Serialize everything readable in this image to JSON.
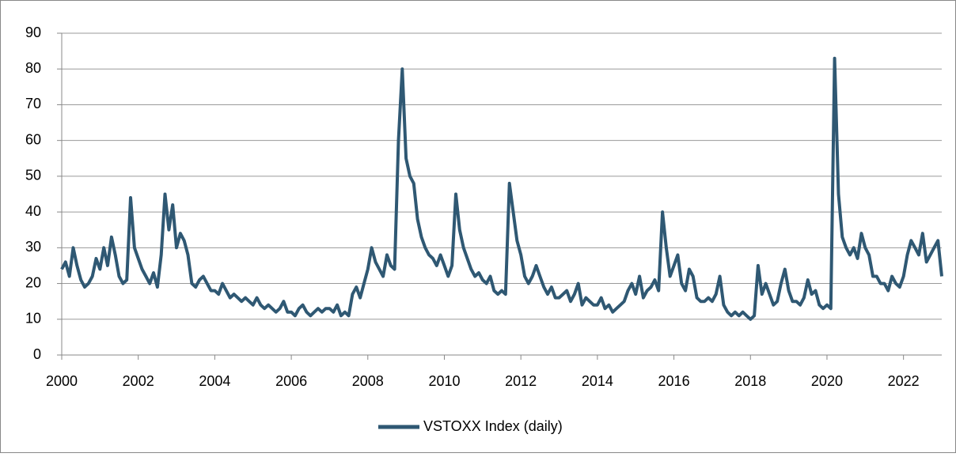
{
  "chart_data": {
    "type": "line",
    "x": [
      2000.0,
      2000.1,
      2000.2,
      2000.3,
      2000.4,
      2000.5,
      2000.6,
      2000.7,
      2000.8,
      2000.9,
      2001.0,
      2001.1,
      2001.2,
      2001.3,
      2001.4,
      2001.5,
      2001.6,
      2001.7,
      2001.8,
      2001.9,
      2002.0,
      2002.1,
      2002.2,
      2002.3,
      2002.4,
      2002.5,
      2002.6,
      2002.7,
      2002.8,
      2002.9,
      2003.0,
      2003.1,
      2003.2,
      2003.3,
      2003.4,
      2003.5,
      2003.6,
      2003.7,
      2003.8,
      2003.9,
      2004.0,
      2004.1,
      2004.2,
      2004.3,
      2004.4,
      2004.5,
      2004.6,
      2004.7,
      2004.8,
      2004.9,
      2005.0,
      2005.1,
      2005.2,
      2005.3,
      2005.4,
      2005.5,
      2005.6,
      2005.7,
      2005.8,
      2005.9,
      2006.0,
      2006.1,
      2006.2,
      2006.3,
      2006.4,
      2006.5,
      2006.6,
      2006.7,
      2006.8,
      2006.9,
      2007.0,
      2007.1,
      2007.2,
      2007.3,
      2007.4,
      2007.5,
      2007.6,
      2007.7,
      2007.8,
      2007.9,
      2008.0,
      2008.1,
      2008.2,
      2008.3,
      2008.4,
      2008.5,
      2008.6,
      2008.7,
      2008.8,
      2008.9,
      2009.0,
      2009.1,
      2009.2,
      2009.3,
      2009.4,
      2009.5,
      2009.6,
      2009.7,
      2009.8,
      2009.9,
      2010.0,
      2010.1,
      2010.2,
      2010.3,
      2010.4,
      2010.5,
      2010.6,
      2010.7,
      2010.8,
      2010.9,
      2011.0,
      2011.1,
      2011.2,
      2011.3,
      2011.4,
      2011.5,
      2011.6,
      2011.7,
      2011.8,
      2011.9,
      2012.0,
      2012.1,
      2012.2,
      2012.3,
      2012.4,
      2012.5,
      2012.6,
      2012.7,
      2012.8,
      2012.9,
      2013.0,
      2013.1,
      2013.2,
      2013.3,
      2013.4,
      2013.5,
      2013.6,
      2013.7,
      2013.8,
      2013.9,
      2014.0,
      2014.1,
      2014.2,
      2014.3,
      2014.4,
      2014.5,
      2014.6,
      2014.7,
      2014.8,
      2014.9,
      2015.0,
      2015.1,
      2015.2,
      2015.3,
      2015.4,
      2015.5,
      2015.6,
      2015.7,
      2015.8,
      2015.9,
      2016.0,
      2016.1,
      2016.2,
      2016.3,
      2016.4,
      2016.5,
      2016.6,
      2016.7,
      2016.8,
      2016.9,
      2017.0,
      2017.1,
      2017.2,
      2017.3,
      2017.4,
      2017.5,
      2017.6,
      2017.7,
      2017.8,
      2017.9,
      2018.0,
      2018.1,
      2018.2,
      2018.3,
      2018.4,
      2018.5,
      2018.6,
      2018.7,
      2018.8,
      2018.9,
      2019.0,
      2019.1,
      2019.2,
      2019.3,
      2019.4,
      2019.5,
      2019.6,
      2019.7,
      2019.8,
      2019.9,
      2020.0,
      2020.1,
      2020.2,
      2020.3,
      2020.4,
      2020.5,
      2020.6,
      2020.7,
      2020.8,
      2020.9,
      2021.0,
      2021.1,
      2021.2,
      2021.3,
      2021.4,
      2021.5,
      2021.6,
      2021.7,
      2021.8,
      2021.9,
      2022.0,
      2022.1,
      2022.2,
      2022.3,
      2022.4,
      2022.5,
      2022.6,
      2022.7,
      2022.8,
      2022.9,
      2023.0
    ],
    "series": [
      {
        "name": "VSTOXX Index (daily)",
        "color": "#2f5873",
        "values": [
          24,
          26,
          22,
          30,
          25,
          21,
          19,
          20,
          22,
          27,
          24,
          30,
          25,
          33,
          28,
          22,
          20,
          21,
          44,
          30,
          27,
          24,
          22,
          20,
          23,
          19,
          28,
          45,
          35,
          42,
          30,
          34,
          32,
          28,
          20,
          19,
          21,
          22,
          20,
          18,
          18,
          17,
          20,
          18,
          16,
          17,
          16,
          15,
          16,
          15,
          14,
          16,
          14,
          13,
          14,
          13,
          12,
          13,
          15,
          12,
          12,
          11,
          13,
          14,
          12,
          11,
          12,
          13,
          12,
          13,
          13,
          12,
          14,
          11,
          12,
          11,
          17,
          19,
          16,
          20,
          24,
          30,
          26,
          24,
          22,
          28,
          25,
          24,
          60,
          80,
          55,
          50,
          48,
          38,
          33,
          30,
          28,
          27,
          25,
          28,
          25,
          22,
          25,
          45,
          35,
          30,
          27,
          24,
          22,
          23,
          21,
          20,
          22,
          18,
          17,
          18,
          17,
          48,
          40,
          32,
          28,
          22,
          20,
          22,
          25,
          22,
          19,
          17,
          19,
          16,
          16,
          17,
          18,
          15,
          17,
          20,
          14,
          16,
          15,
          14,
          14,
          16,
          13,
          14,
          12,
          13,
          14,
          15,
          18,
          20,
          17,
          22,
          16,
          18,
          19,
          21,
          18,
          40,
          30,
          22,
          25,
          28,
          20,
          18,
          24,
          22,
          16,
          15,
          15,
          16,
          15,
          17,
          22,
          14,
          12,
          11,
          12,
          11,
          12,
          11,
          10,
          11,
          25,
          17,
          20,
          17,
          14,
          15,
          20,
          24,
          18,
          15,
          15,
          14,
          16,
          21,
          17,
          18,
          14,
          13,
          14,
          13,
          83,
          45,
          33,
          30,
          28,
          30,
          27,
          34,
          30,
          28,
          22,
          22,
          20,
          20,
          18,
          22,
          20,
          19,
          22,
          28,
          32,
          30,
          28,
          34,
          26,
          28,
          30,
          32,
          22
        ]
      }
    ],
    "xlim": [
      2000,
      2023
    ],
    "xticks": [
      2000,
      2002,
      2004,
      2006,
      2008,
      2010,
      2012,
      2014,
      2016,
      2018,
      2020,
      2022
    ],
    "ylim": [
      0,
      90
    ],
    "yticks": [
      0,
      10,
      20,
      30,
      40,
      50,
      60,
      70,
      80,
      90
    ],
    "grid": true
  }
}
